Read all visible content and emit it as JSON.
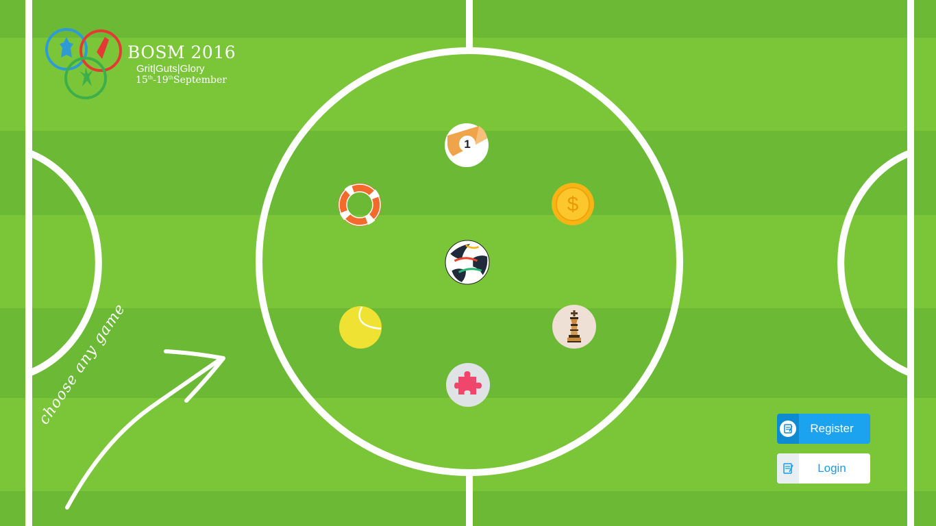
{
  "logo": {
    "title": "BOSM",
    "year": "2016",
    "tagline": "Grit|Guts|Glory",
    "date_start": "15",
    "date_start_suffix": "th",
    "date_sep": "-19",
    "date_end_suffix": "th",
    "date_month": "September"
  },
  "hint": {
    "text": "choose any game"
  },
  "games": [
    {
      "name": "billiards-ball-icon",
      "label": "1"
    },
    {
      "name": "lifebuoy-icon"
    },
    {
      "name": "coin-dollar-icon",
      "label": "$"
    },
    {
      "name": "football-icon"
    },
    {
      "name": "tennis-ball-icon"
    },
    {
      "name": "chess-king-icon"
    },
    {
      "name": "puzzle-piece-icon"
    }
  ],
  "buttons": {
    "register_label": "Register",
    "login_label": "Login"
  },
  "colors": {
    "pitch_light": "#7bc638",
    "pitch_dark": "#6cb935",
    "line": "#ffffff",
    "register_bg": "#1ba3f0",
    "login_bg": "#ffffff"
  }
}
